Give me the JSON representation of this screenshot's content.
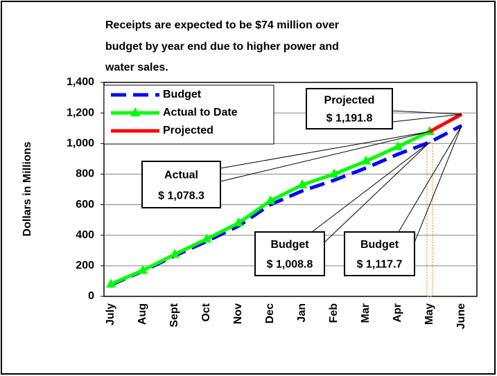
{
  "chart_data": {
    "type": "line",
    "title": [
      "Receipts are expected to be $74 million over",
      "budget by year end due to higher power and",
      "water sales."
    ],
    "y_label": "Dollars in Millions",
    "categories": [
      "July",
      "Aug",
      "Sept",
      "Oct",
      "Nov",
      "Dec",
      "Jan",
      "Feb",
      "Mar",
      "Apr",
      "May",
      "June"
    ],
    "series": [
      {
        "name": "Budget",
        "color": "#0000ff",
        "dashed": true,
        "values": [
          75,
          165,
          265,
          360,
          460,
          600,
          690,
          760,
          840,
          930,
          1008.8,
          1117.7
        ]
      },
      {
        "name": "Actual to Date",
        "color": "#00ff00",
        "markers": true,
        "values": [
          80,
          170,
          275,
          375,
          480,
          625,
          730,
          800,
          885,
          980,
          1078.3,
          null
        ]
      },
      {
        "name": "Projected",
        "color": "#ff0000",
        "values": [
          null,
          null,
          null,
          null,
          null,
          null,
          null,
          null,
          null,
          null,
          1078.3,
          1191.8
        ]
      }
    ],
    "ylim": [
      0,
      1400
    ],
    "yticks": [
      0,
      200,
      400,
      600,
      800,
      {
        "value": 1000,
        "label": "1,000"
      },
      {
        "value": 1200,
        "label": "1,200"
      },
      {
        "value": 1400,
        "label": "1,400"
      }
    ],
    "grid": true,
    "legend": "top-left",
    "annotations": [
      {
        "lines": [
          "Projected",
          "$ 1,191.8"
        ],
        "series": 2,
        "index": 11
      },
      {
        "lines": [
          "Actual",
          "$ 1,078.3"
        ],
        "series": 1,
        "index": 10
      },
      {
        "lines": [
          "Budget",
          "$ 1,008.8"
        ],
        "series": 0,
        "index": 10
      },
      {
        "lines": [
          "Budget",
          "$ 1,117.7"
        ],
        "series": 0,
        "index": 11
      }
    ]
  }
}
